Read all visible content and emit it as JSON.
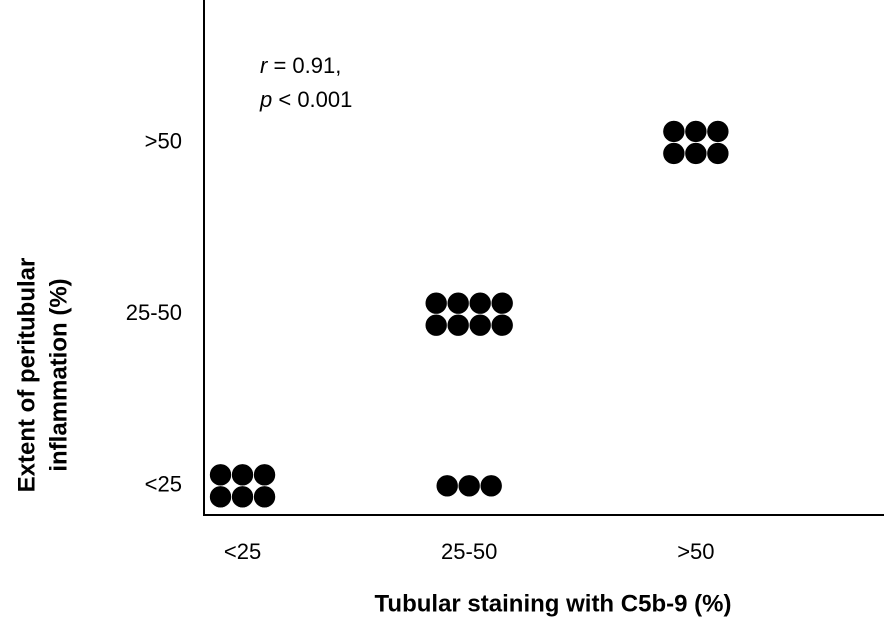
{
  "chart_data": {
    "type": "dot",
    "xlabel": "Tubular staining with C5b-9 (%)",
    "ylabel": [
      "Extent of peritubular",
      "inflammation (%)"
    ],
    "xcategories": [
      "<25",
      "25-50",
      ">50"
    ],
    "ycategories": [
      "<25",
      "25-50",
      ">50"
    ],
    "counts": [
      [
        6,
        0,
        0
      ],
      [
        3,
        8,
        0
      ],
      [
        0,
        0,
        6
      ]
    ],
    "color": "#000000",
    "annotation": [
      {
        "symbol": "r",
        "text": " = 0.91,"
      },
      {
        "symbol": "p",
        "text": " < 0.001"
      }
    ]
  }
}
